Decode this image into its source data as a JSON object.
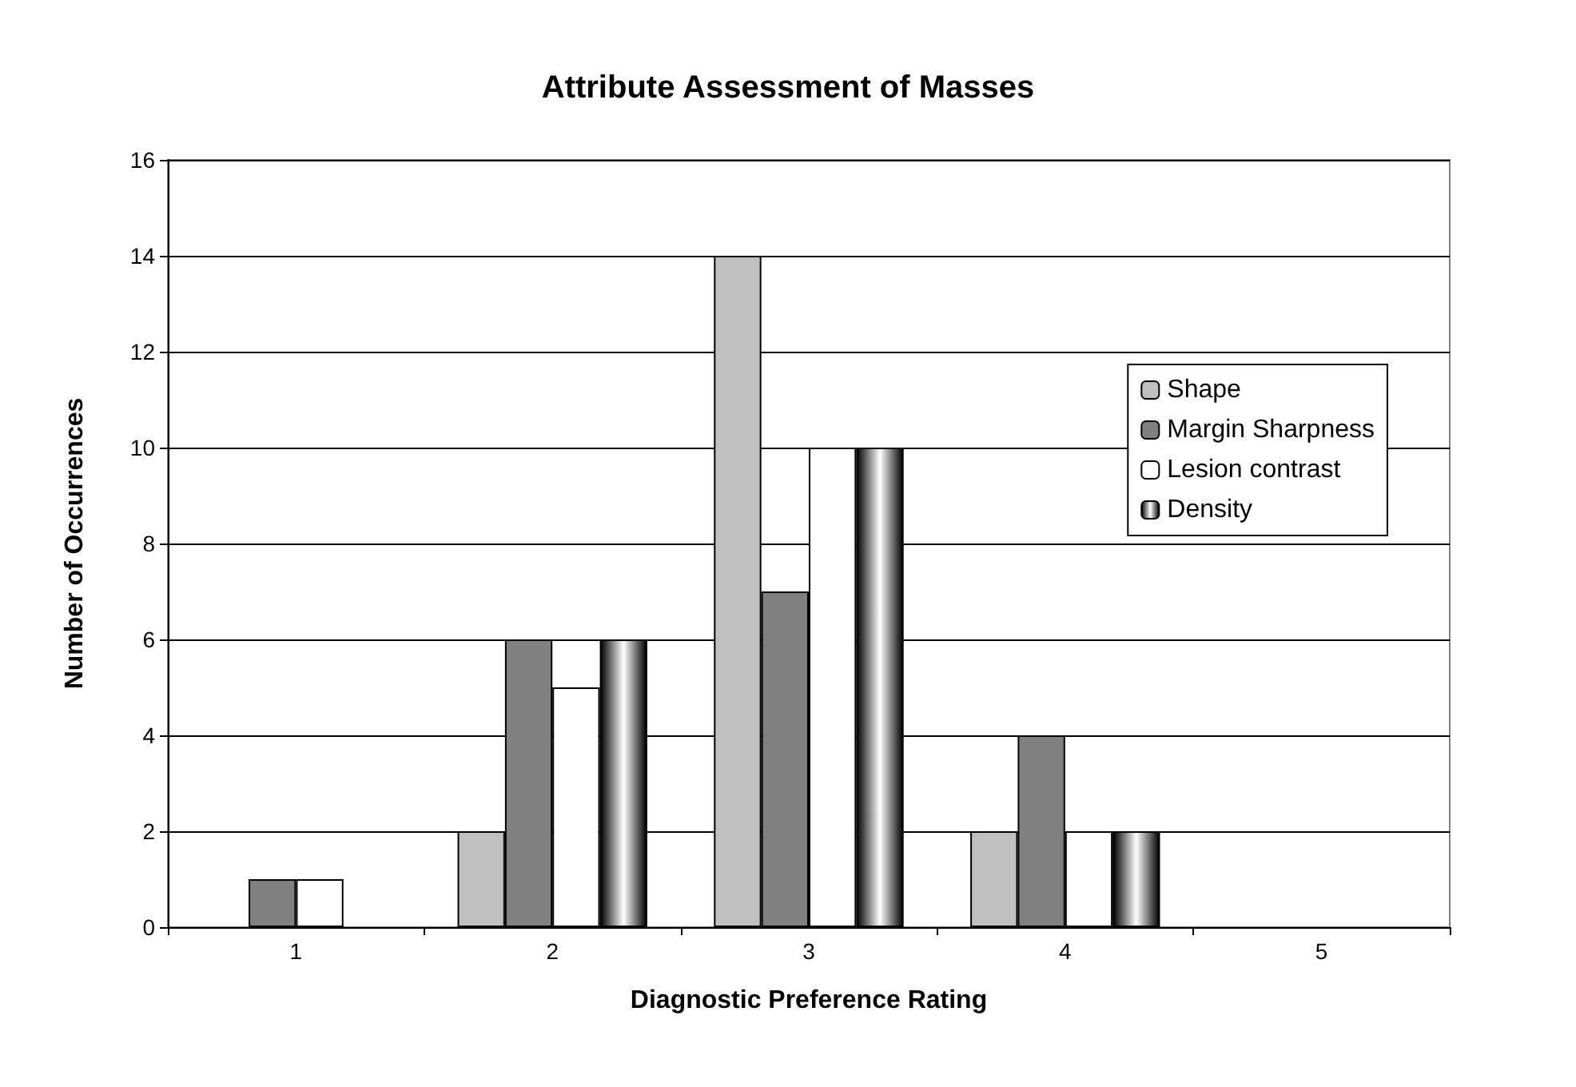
{
  "chart_data": {
    "type": "bar",
    "title": "Attribute Assessment of Masses",
    "xlabel": "Diagnostic Preference Rating",
    "ylabel": "Number of Occurrences",
    "categories": [
      "1",
      "2",
      "3",
      "4",
      "5"
    ],
    "series": [
      {
        "name": "Shape",
        "color": "#c0c0c0",
        "values": [
          0,
          2,
          14,
          2,
          0
        ]
      },
      {
        "name": "Margin Sharpness",
        "color": "#808080",
        "values": [
          1,
          6,
          7,
          4,
          0
        ]
      },
      {
        "name": "Lesion contrast",
        "color": "#ffffff",
        "values": [
          1,
          5,
          10,
          2,
          0
        ]
      },
      {
        "name": "Density",
        "color": "#000000",
        "values": [
          0,
          6,
          10,
          2,
          0
        ]
      }
    ],
    "ylim": [
      0,
      16
    ],
    "yticks": [
      0,
      2,
      4,
      6,
      8,
      10,
      12,
      14,
      16
    ],
    "grid": "y",
    "legend": "right"
  }
}
